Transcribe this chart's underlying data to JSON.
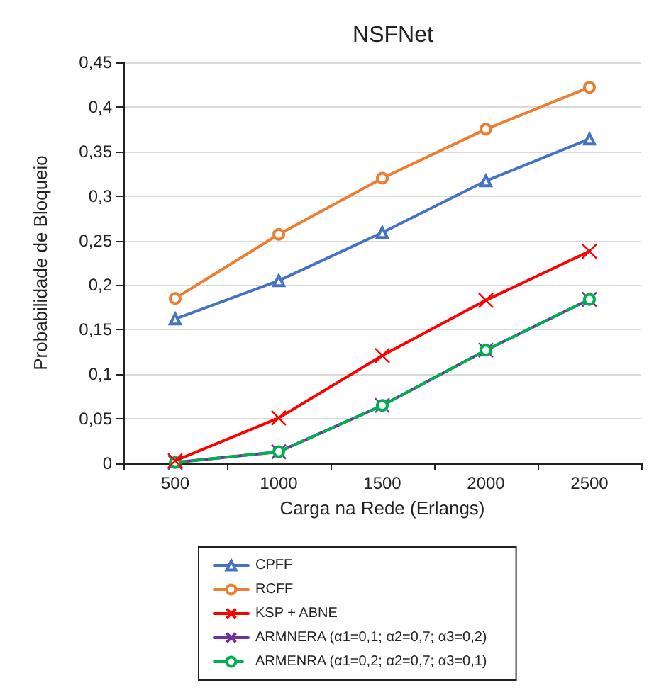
{
  "chart_data": {
    "type": "line",
    "title": "NSFNet",
    "xlabel": "Carga na Rede (Erlangs)",
    "ylabel": "Probabilidade de Bloqueio",
    "categories": [
      "500",
      "1000",
      "1500",
      "2000",
      "2500"
    ],
    "series": [
      {
        "name": "CPFF",
        "color": "#4472c4",
        "marker": "triangle",
        "values": [
          0.162,
          0.205,
          0.259,
          0.317,
          0.364
        ]
      },
      {
        "name": "RCFF",
        "color": "#ed7d31",
        "marker": "circle",
        "values": [
          0.185,
          0.257,
          0.32,
          0.375,
          0.422
        ]
      },
      {
        "name": "KSP + ABNE",
        "color": "#ff0000",
        "marker": "cross",
        "values": [
          0.003,
          0.051,
          0.121,
          0.183,
          0.238
        ]
      },
      {
        "name": "ARMNERA (α1=0,1; α2=0,7; α3=0,2)",
        "color": "#7030a0",
        "marker": "cross",
        "values": [
          0.001,
          0.013,
          0.065,
          0.127,
          0.184
        ]
      },
      {
        "name": "ARMENRA (α1=0,2; α2=0,7; α3=0,1)",
        "color": "#00b050",
        "marker": "circle",
        "line_style": "dashed",
        "values": [
          0.001,
          0.013,
          0.065,
          0.127,
          0.184
        ]
      }
    ],
    "ylim": [
      0,
      0.45
    ],
    "yticks": [
      {
        "value": 0,
        "label": "0"
      },
      {
        "value": 0.05,
        "label": "0,05"
      },
      {
        "value": 0.1,
        "label": "0,1"
      },
      {
        "value": 0.15,
        "label": "0,15"
      },
      {
        "value": 0.2,
        "label": "0,2"
      },
      {
        "value": 0.25,
        "label": "0,25"
      },
      {
        "value": 0.3,
        "label": "0,3"
      },
      {
        "value": 0.35,
        "label": "0,35"
      },
      {
        "value": 0.4,
        "label": "0,4"
      },
      {
        "value": 0.45,
        "label": "0,45"
      }
    ],
    "grid": "y",
    "legend": "bottom"
  }
}
